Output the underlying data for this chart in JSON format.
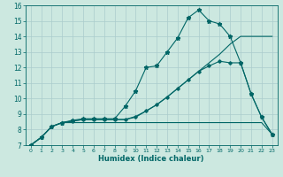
{
  "xlabel": "Humidex (Indice chaleur)",
  "xlim": [
    -0.5,
    23.5
  ],
  "ylim": [
    7,
    16
  ],
  "xticks": [
    0,
    1,
    2,
    3,
    4,
    5,
    6,
    7,
    8,
    9,
    10,
    11,
    12,
    13,
    14,
    15,
    16,
    17,
    18,
    19,
    20,
    21,
    22,
    23
  ],
  "yticks": [
    7,
    8,
    9,
    10,
    11,
    12,
    13,
    14,
    15,
    16
  ],
  "background_color": "#cce8e0",
  "grid_color": "#aacccc",
  "line_color": "#006666",
  "line1_x": [
    0,
    1,
    2,
    3,
    4,
    5,
    6,
    7,
    8,
    9,
    10,
    11,
    12,
    13,
    14,
    15,
    16,
    17,
    18,
    19,
    20,
    21,
    22,
    23
  ],
  "line1_y": [
    7.0,
    7.5,
    8.2,
    8.45,
    8.6,
    8.7,
    8.7,
    8.7,
    8.7,
    9.5,
    10.5,
    12.0,
    12.1,
    13.0,
    13.9,
    15.2,
    15.7,
    15.0,
    14.8,
    14.0,
    12.3,
    10.3,
    8.8,
    7.7
  ],
  "line2_x": [
    0,
    1,
    2,
    3,
    4,
    5,
    6,
    7,
    8,
    9,
    10,
    11,
    12,
    13,
    14,
    15,
    16,
    17,
    18,
    19,
    20,
    21,
    22,
    23
  ],
  "line2_y": [
    7.0,
    7.5,
    8.2,
    8.45,
    8.55,
    8.65,
    8.65,
    8.65,
    8.65,
    8.65,
    8.85,
    9.2,
    9.6,
    10.1,
    10.65,
    11.2,
    11.75,
    12.1,
    12.4,
    12.3,
    12.3,
    10.3,
    8.8,
    7.7
  ],
  "line3_x": [
    0,
    1,
    2,
    3,
    4,
    5,
    6,
    7,
    8,
    9,
    10,
    11,
    12,
    13,
    14,
    15,
    16,
    17,
    18,
    19,
    20,
    21,
    22,
    23
  ],
  "line3_y": [
    7.0,
    7.5,
    8.2,
    8.45,
    8.45,
    8.45,
    8.45,
    8.45,
    8.45,
    8.45,
    8.45,
    8.45,
    8.45,
    8.45,
    8.45,
    8.45,
    8.45,
    8.45,
    8.45,
    8.45,
    8.45,
    8.45,
    8.45,
    7.7
  ],
  "line4_x": [
    0,
    1,
    2,
    3,
    4,
    5,
    6,
    7,
    8,
    9,
    10,
    11,
    12,
    13,
    14,
    15,
    16,
    17,
    18,
    19,
    20,
    21,
    22,
    23
  ],
  "line4_y": [
    7.0,
    7.5,
    8.2,
    8.45,
    8.55,
    8.65,
    8.65,
    8.65,
    8.65,
    8.65,
    8.8,
    9.2,
    9.6,
    10.1,
    10.65,
    11.2,
    11.75,
    12.3,
    12.85,
    13.5,
    14.0,
    14.0,
    14.0,
    14.0
  ]
}
